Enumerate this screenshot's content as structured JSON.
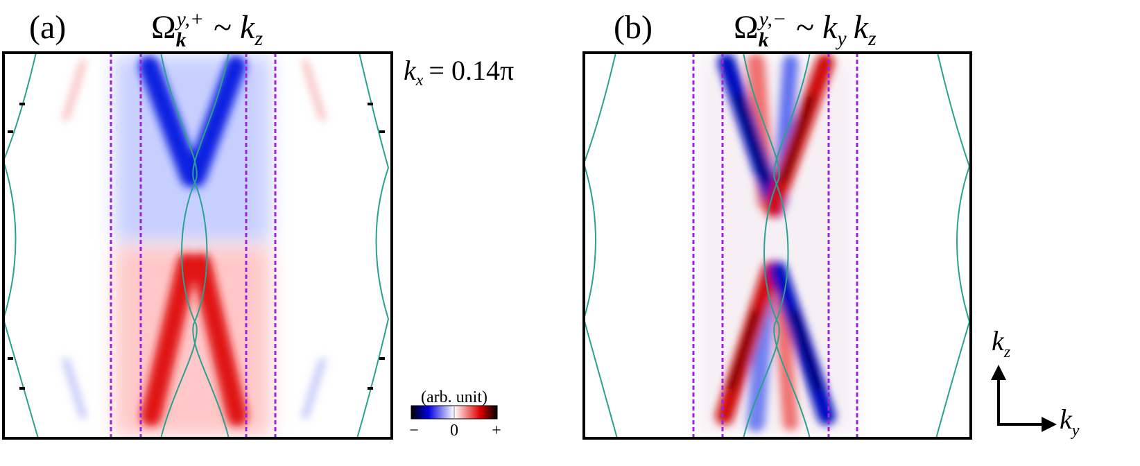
{
  "panels": [
    {
      "label": "(a)",
      "title": {
        "symbol": "Ω",
        "sub": "k",
        "sup": "y,+",
        "relation": "~",
        "terms": [
          {
            "var": "k",
            "sub": "z"
          }
        ]
      }
    },
    {
      "label": "(b)",
      "title": {
        "symbol": "Ω",
        "sub": "k",
        "sup": "y,−",
        "relation": "~",
        "terms": [
          {
            "var": "k",
            "sub": "y"
          },
          {
            "var": "k",
            "sub": "z"
          }
        ]
      }
    }
  ],
  "annotation": {
    "var": "k",
    "sub": "x",
    "rest": "= 0.14π"
  },
  "colorbar": {
    "title": "(arb. unit)",
    "labels": [
      "−",
      "0",
      "+"
    ]
  },
  "axes": {
    "vertical": {
      "var": "k",
      "sub": "z"
    },
    "horizontal": {
      "var": "k",
      "sub": "y"
    }
  }
}
